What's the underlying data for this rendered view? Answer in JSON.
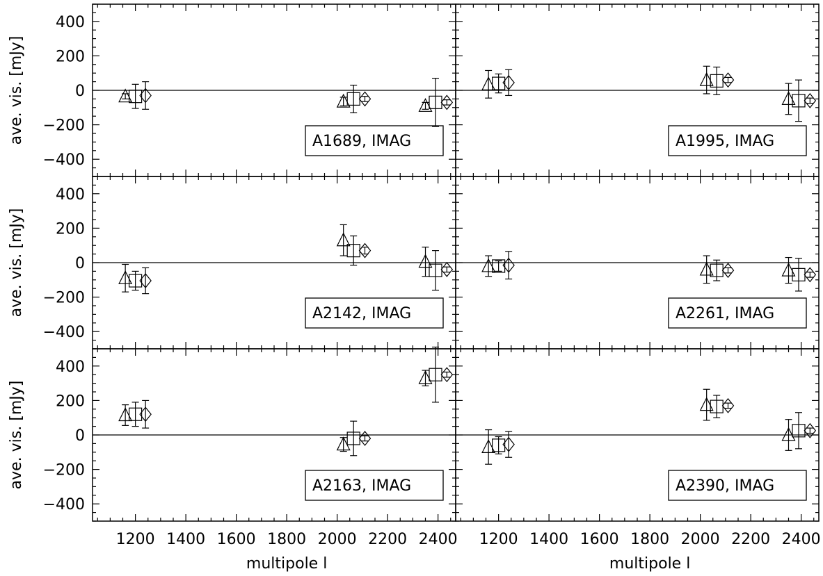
{
  "figure": {
    "xlabel": "multipole l",
    "ylabel": "ave. vis. [mJy]",
    "x_tick_labels": [
      "1200",
      "1400",
      "1600",
      "1800",
      "2000",
      "2200",
      "2400"
    ],
    "y_tick_labels": [
      "400",
      "200",
      "0",
      "−200",
      "−400"
    ]
  },
  "chart_data": [
    {
      "type": "scatter",
      "title": "",
      "annotation": "A1689, IMAG",
      "xlabel": "",
      "ylabel": "ave. vis. [mJy]",
      "xlim": [
        1030,
        2470
      ],
      "ylim": [
        -500,
        500
      ],
      "reference_line_y": 0,
      "series": [
        {
          "marker": "triangle",
          "x": [
            1160,
            2025,
            2350
          ],
          "y": [
            -35,
            -65,
            -90
          ],
          "err": [
            15,
            25,
            20
          ]
        },
        {
          "marker": "square",
          "x": [
            1200,
            2065,
            2390
          ],
          "y": [
            -35,
            -50,
            -70
          ],
          "err": [
            70,
            80,
            140
          ]
        },
        {
          "marker": "diamond",
          "x": [
            1240,
            2110,
            2435
          ],
          "y": [
            -30,
            -50,
            -70
          ],
          "err": [
            80,
            15,
            15
          ]
        }
      ]
    },
    {
      "type": "scatter",
      "title": "",
      "annotation": "A1995, IMAG",
      "xlabel": "",
      "ylabel": "",
      "xlim": [
        1030,
        2470
      ],
      "ylim": [
        -500,
        500
      ],
      "reference_line_y": 0,
      "series": [
        {
          "marker": "triangle",
          "x": [
            1160,
            2025,
            2350
          ],
          "y": [
            35,
            60,
            -50
          ],
          "err": [
            80,
            80,
            90
          ]
        },
        {
          "marker": "square",
          "x": [
            1200,
            2065,
            2390
          ],
          "y": [
            40,
            55,
            -60
          ],
          "err": [
            55,
            80,
            120
          ]
        },
        {
          "marker": "diamond",
          "x": [
            1240,
            2110,
            2435
          ],
          "y": [
            45,
            60,
            -60
          ],
          "err": [
            75,
            15,
            15
          ]
        }
      ]
    },
    {
      "type": "scatter",
      "title": "",
      "annotation": "A2142, IMAG",
      "xlabel": "",
      "ylabel": "ave. vis. [mJy]",
      "xlim": [
        1030,
        2470
      ],
      "ylim": [
        -500,
        500
      ],
      "reference_line_y": 0,
      "series": [
        {
          "marker": "triangle",
          "x": [
            1160,
            2025,
            2350
          ],
          "y": [
            -90,
            130,
            5
          ],
          "err": [
            80,
            90,
            85
          ]
        },
        {
          "marker": "square",
          "x": [
            1200,
            2065,
            2390
          ],
          "y": [
            -105,
            70,
            -45
          ],
          "err": [
            55,
            85,
            115
          ]
        },
        {
          "marker": "diamond",
          "x": [
            1240,
            2110,
            2435
          ],
          "y": [
            -105,
            70,
            -40
          ],
          "err": [
            75,
            20,
            15
          ]
        }
      ]
    },
    {
      "type": "scatter",
      "title": "",
      "annotation": "A2261, IMAG",
      "xlabel": "",
      "ylabel": "",
      "xlim": [
        1030,
        2470
      ],
      "ylim": [
        -500,
        500
      ],
      "reference_line_y": 0,
      "series": [
        {
          "marker": "triangle",
          "x": [
            1160,
            2025,
            2350
          ],
          "y": [
            -20,
            -40,
            -45
          ],
          "err": [
            60,
            80,
            75
          ]
        },
        {
          "marker": "square",
          "x": [
            1200,
            2065,
            2390
          ],
          "y": [
            -20,
            -45,
            -70
          ],
          "err": [
            30,
            60,
            95
          ]
        },
        {
          "marker": "diamond",
          "x": [
            1240,
            2110,
            2435
          ],
          "y": [
            -15,
            -45,
            -70
          ],
          "err": [
            80,
            15,
            15
          ]
        }
      ]
    },
    {
      "type": "scatter",
      "title": "",
      "annotation": "A2163, IMAG",
      "xlabel": "multipole l",
      "ylabel": "ave. vis. [mJy]",
      "xlim": [
        1030,
        2470
      ],
      "ylim": [
        -500,
        500
      ],
      "reference_line_y": 0,
      "series": [
        {
          "marker": "triangle",
          "x": [
            1160,
            2025,
            2350
          ],
          "y": [
            115,
            -55,
            330
          ],
          "err": [
            60,
            40,
            45
          ]
        },
        {
          "marker": "square",
          "x": [
            1200,
            2065,
            2390
          ],
          "y": [
            120,
            -20,
            350
          ],
          "err": [
            70,
            100,
            160
          ]
        },
        {
          "marker": "diamond",
          "x": [
            1240,
            2110,
            2435
          ],
          "y": [
            120,
            -20,
            350
          ],
          "err": [
            80,
            15,
            15
          ]
        }
      ]
    },
    {
      "type": "scatter",
      "title": "",
      "annotation": "A2390, IMAG",
      "xlabel": "multipole l",
      "ylabel": "",
      "xlim": [
        1030,
        2470
      ],
      "ylim": [
        -500,
        500
      ],
      "reference_line_y": 0,
      "series": [
        {
          "marker": "triangle",
          "x": [
            1160,
            2025,
            2350
          ],
          "y": [
            -70,
            175,
            0
          ],
          "err": [
            100,
            90,
            90
          ]
        },
        {
          "marker": "square",
          "x": [
            1200,
            2065,
            2390
          ],
          "y": [
            -60,
            165,
            25
          ],
          "err": [
            50,
            65,
            105
          ]
        },
        {
          "marker": "diamond",
          "x": [
            1240,
            2110,
            2435
          ],
          "y": [
            -55,
            170,
            25
          ],
          "err": [
            75,
            15,
            15
          ]
        }
      ]
    }
  ]
}
